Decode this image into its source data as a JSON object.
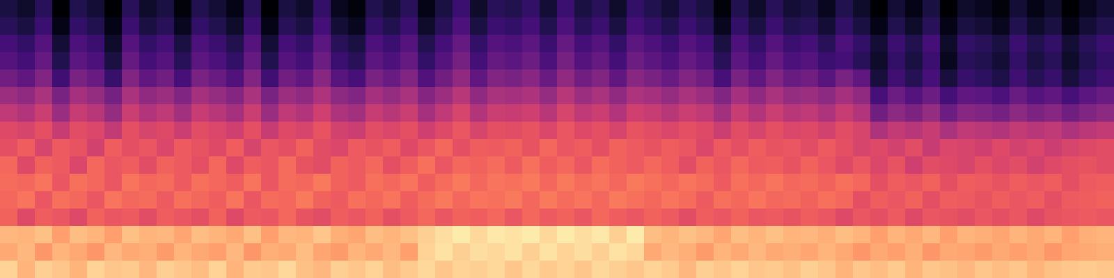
{
  "chart_data": {
    "type": "heatmap",
    "color": "magma",
    "tick_labels": false,
    "zlim": [
      0,
      100
    ],
    "cells": [
      [
        12,
        8,
        16,
        0,
        14,
        10,
        0,
        16,
        8,
        12,
        2,
        14,
        10,
        4,
        16,
        0,
        12,
        8,
        18,
        6,
        2,
        14,
        10,
        16,
        4,
        12,
        20,
        8,
        16,
        14,
        18,
        10,
        20,
        12,
        16,
        8,
        18,
        14,
        10,
        16,
        12,
        2,
        14,
        8,
        16,
        10,
        12,
        6,
        14,
        8,
        0,
        10,
        4,
        12,
        0,
        8,
        6,
        2,
        10,
        4,
        8,
        0,
        6,
        10
      ],
      [
        16,
        12,
        20,
        4,
        18,
        14,
        4,
        20,
        12,
        16,
        6,
        18,
        14,
        8,
        20,
        4,
        16,
        12,
        22,
        10,
        6,
        18,
        14,
        20,
        8,
        16,
        24,
        12,
        20,
        18,
        22,
        14,
        24,
        16,
        20,
        12,
        22,
        18,
        14,
        20,
        16,
        6,
        18,
        12,
        20,
        14,
        16,
        10,
        18,
        12,
        4,
        14,
        8,
        16,
        4,
        12,
        10,
        6,
        14,
        8,
        12,
        4,
        10,
        14
      ],
      [
        22,
        18,
        26,
        10,
        24,
        20,
        8,
        26,
        18,
        22,
        12,
        24,
        20,
        14,
        26,
        10,
        22,
        18,
        28,
        16,
        12,
        24,
        20,
        26,
        14,
        22,
        30,
        18,
        26,
        24,
        28,
        20,
        30,
        22,
        26,
        18,
        28,
        24,
        20,
        26,
        22,
        12,
        24,
        18,
        26,
        20,
        22,
        16,
        24,
        18,
        10,
        20,
        14,
        22,
        8,
        18,
        16,
        12,
        20,
        14,
        18,
        10,
        16,
        20
      ],
      [
        26,
        22,
        30,
        14,
        28,
        24,
        12,
        30,
        22,
        26,
        16,
        28,
        24,
        18,
        30,
        14,
        26,
        22,
        32,
        20,
        16,
        28,
        24,
        30,
        18,
        26,
        34,
        22,
        30,
        28,
        32,
        24,
        34,
        26,
        30,
        22,
        32,
        28,
        24,
        30,
        26,
        16,
        28,
        22,
        30,
        24,
        26,
        20,
        22,
        16,
        8,
        18,
        12,
        20,
        6,
        16,
        14,
        10,
        18,
        12,
        16,
        8,
        14,
        18
      ],
      [
        33,
        29,
        37,
        21,
        35,
        31,
        19,
        37,
        29,
        33,
        23,
        35,
        31,
        25,
        37,
        21,
        33,
        29,
        39,
        27,
        23,
        35,
        31,
        37,
        25,
        33,
        41,
        29,
        37,
        35,
        39,
        31,
        41,
        33,
        37,
        29,
        39,
        35,
        31,
        37,
        33,
        23,
        35,
        29,
        37,
        31,
        33,
        27,
        35,
        29,
        11,
        21,
        15,
        23,
        11,
        19,
        17,
        13,
        21,
        15,
        19,
        11,
        17,
        21
      ],
      [
        44,
        41,
        47,
        35,
        46,
        42,
        34,
        47,
        41,
        44,
        37,
        46,
        42,
        38,
        47,
        35,
        44,
        41,
        48,
        40,
        37,
        46,
        42,
        47,
        38,
        44,
        50,
        41,
        47,
        46,
        48,
        42,
        50,
        44,
        47,
        41,
        48,
        46,
        42,
        47,
        44,
        37,
        46,
        41,
        47,
        42,
        44,
        40,
        46,
        41,
        23,
        32,
        26,
        32,
        22,
        29,
        28,
        24,
        31,
        26,
        29,
        23,
        28,
        31
      ],
      [
        52,
        49,
        55,
        43,
        54,
        50,
        42,
        55,
        49,
        52,
        45,
        54,
        50,
        46,
        55,
        43,
        52,
        49,
        56,
        48,
        45,
        54,
        50,
        55,
        46,
        52,
        58,
        49,
        55,
        54,
        56,
        50,
        58,
        52,
        55,
        49,
        56,
        54,
        50,
        55,
        52,
        45,
        54,
        49,
        55,
        50,
        52,
        48,
        54,
        49,
        33,
        40,
        36,
        42,
        32,
        39,
        37,
        34,
        40,
        36,
        39,
        33,
        37,
        40
      ],
      [
        60,
        58,
        62,
        54,
        61,
        59,
        53,
        62,
        58,
        60,
        55,
        61,
        59,
        56,
        62,
        54,
        60,
        58,
        63,
        57,
        55,
        61,
        59,
        62,
        56,
        60,
        64,
        58,
        62,
        61,
        63,
        59,
        64,
        60,
        62,
        58,
        63,
        61,
        59,
        62,
        60,
        55,
        61,
        58,
        62,
        59,
        60,
        57,
        61,
        58,
        48,
        53,
        50,
        54,
        47,
        52,
        51,
        49,
        53,
        50,
        52,
        48,
        51,
        53
      ],
      [
        62,
        66,
        58,
        65,
        63,
        57,
        66,
        62,
        64,
        59,
        65,
        63,
        60,
        66,
        58,
        64,
        62,
        67,
        61,
        59,
        65,
        63,
        66,
        60,
        64,
        68,
        62,
        66,
        65,
        67,
        63,
        68,
        64,
        66,
        62,
        67,
        65,
        63,
        66,
        64,
        59,
        65,
        62,
        66,
        63,
        64,
        61,
        65,
        62,
        58,
        60,
        57,
        61,
        54,
        59,
        58,
        56,
        60,
        57,
        59,
        55,
        58,
        60,
        61
      ],
      [
        68,
        60,
        67,
        65,
        59,
        68,
        64,
        66,
        61,
        67,
        65,
        62,
        68,
        60,
        66,
        64,
        69,
        63,
        61,
        67,
        65,
        68,
        62,
        66,
        70,
        64,
        68,
        67,
        69,
        65,
        70,
        66,
        68,
        64,
        69,
        67,
        65,
        68,
        66,
        61,
        67,
        64,
        68,
        65,
        66,
        63,
        67,
        64,
        60,
        64,
        59,
        63,
        56,
        61,
        60,
        58,
        62,
        59,
        61,
        57,
        60,
        62,
        63,
        61
      ],
      [
        69,
        68,
        71,
        64,
        70,
        68,
        64,
        71,
        68,
        69,
        65,
        70,
        68,
        66,
        71,
        64,
        69,
        68,
        72,
        67,
        65,
        70,
        68,
        71,
        66,
        69,
        72,
        68,
        71,
        70,
        72,
        68,
        72,
        69,
        71,
        68,
        72,
        70,
        68,
        71,
        69,
        65,
        70,
        68,
        71,
        68,
        69,
        67,
        70,
        68,
        62,
        66,
        64,
        67,
        62,
        66,
        65,
        63,
        66,
        64,
        66,
        62,
        65,
        66
      ],
      [
        68,
        71,
        64,
        70,
        68,
        64,
        71,
        68,
        69,
        65,
        70,
        68,
        66,
        71,
        64,
        69,
        68,
        72,
        67,
        65,
        70,
        68,
        71,
        66,
        69,
        72,
        68,
        71,
        70,
        72,
        68,
        72,
        69,
        71,
        68,
        72,
        70,
        68,
        71,
        69,
        65,
        70,
        68,
        71,
        68,
        69,
        67,
        70,
        68,
        62,
        66,
        64,
        67,
        62,
        66,
        65,
        63,
        66,
        64,
        66,
        62,
        65,
        66,
        67
      ],
      [
        67,
        60,
        66,
        64,
        60,
        67,
        64,
        65,
        61,
        66,
        64,
        62,
        67,
        60,
        65,
        64,
        68,
        63,
        61,
        66,
        64,
        67,
        62,
        65,
        68,
        64,
        67,
        66,
        68,
        64,
        68,
        65,
        67,
        64,
        68,
        66,
        64,
        67,
        65,
        61,
        66,
        64,
        67,
        64,
        65,
        63,
        66,
        64,
        60,
        64,
        62,
        65,
        60,
        64,
        63,
        61,
        64,
        62,
        64,
        60,
        63,
        64,
        65,
        64
      ],
      [
        85,
        84,
        87,
        80,
        86,
        84,
        80,
        87,
        84,
        85,
        81,
        86,
        84,
        82,
        87,
        80,
        85,
        84,
        88,
        83,
        81,
        86,
        84,
        87,
        90,
        93,
        96,
        92,
        95,
        94,
        96,
        92,
        96,
        93,
        95,
        90,
        96,
        86,
        84,
        87,
        85,
        81,
        86,
        84,
        87,
        84,
        85,
        83,
        86,
        84,
        80,
        84,
        82,
        85,
        80,
        84,
        83,
        81,
        84,
        82,
        84,
        80,
        83,
        84
      ],
      [
        82,
        85,
        78,
        84,
        82,
        78,
        85,
        82,
        83,
        79,
        84,
        82,
        80,
        85,
        78,
        83,
        82,
        86,
        81,
        79,
        84,
        82,
        85,
        80,
        91,
        94,
        90,
        93,
        92,
        94,
        90,
        94,
        91,
        93,
        90,
        94,
        92,
        82,
        85,
        83,
        79,
        84,
        82,
        85,
        82,
        83,
        81,
        84,
        82,
        78,
        82,
        80,
        83,
        78,
        82,
        81,
        79,
        82,
        80,
        82,
        78,
        81,
        82,
        83
      ],
      [
        91,
        84,
        90,
        88,
        84,
        91,
        88,
        89,
        85,
        90,
        88,
        86,
        91,
        84,
        89,
        88,
        92,
        87,
        85,
        90,
        88,
        91,
        86,
        89,
        92,
        88,
        91,
        90,
        92,
        88,
        92,
        89,
        91,
        88,
        92,
        90,
        88,
        91,
        89,
        85,
        90,
        88,
        91,
        88,
        89,
        87,
        90,
        88,
        84,
        88,
        86,
        89,
        84,
        88,
        87,
        85,
        88,
        86,
        88,
        84,
        87,
        88,
        89,
        88
      ]
    ]
  }
}
